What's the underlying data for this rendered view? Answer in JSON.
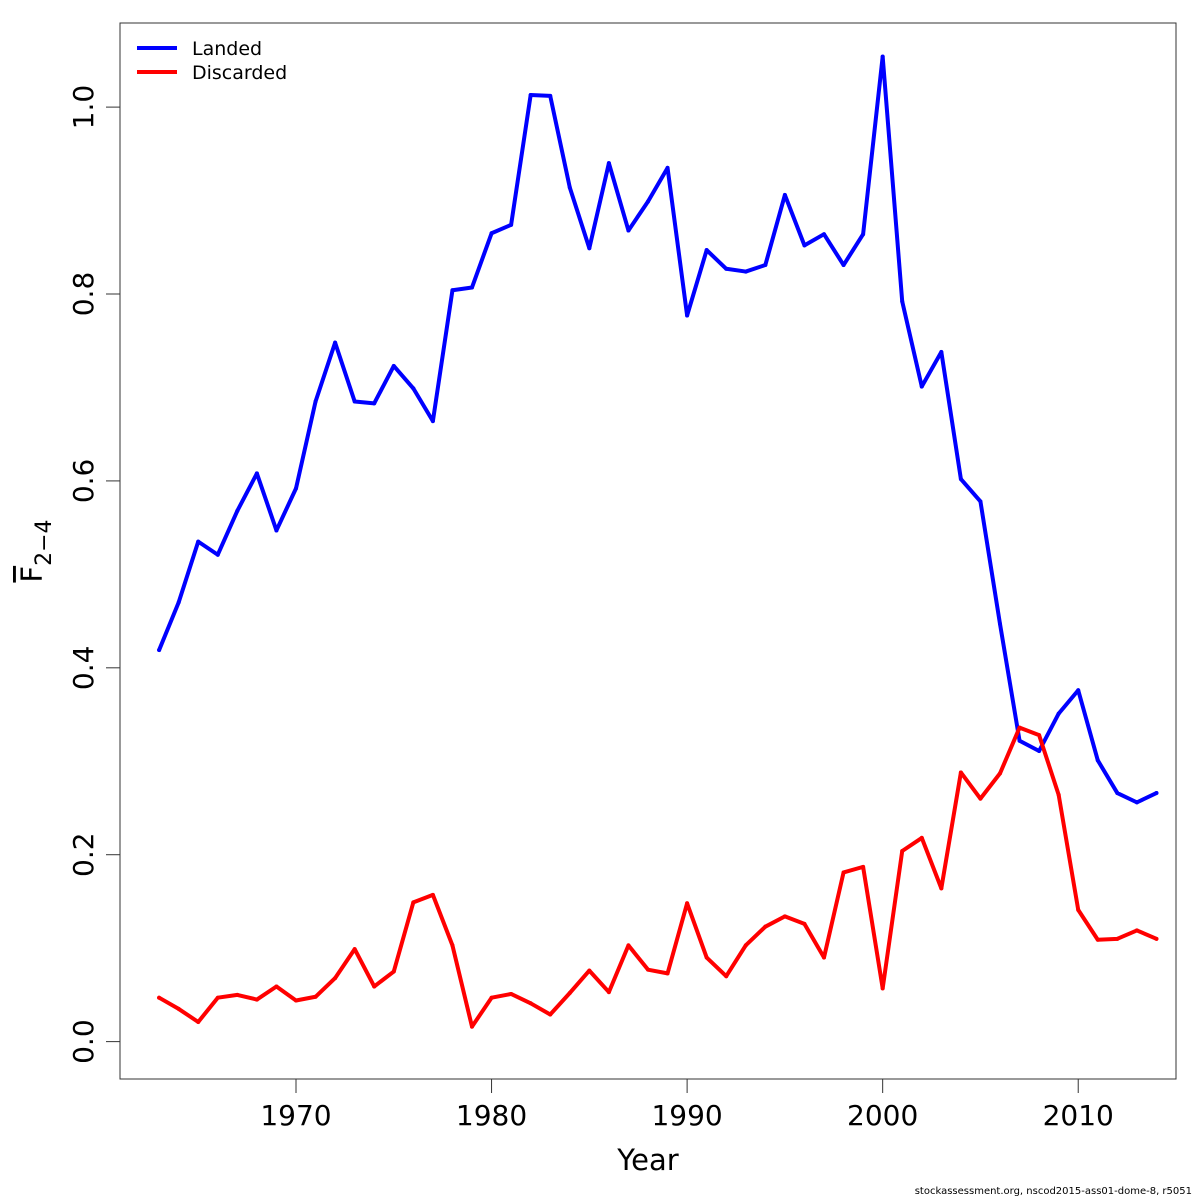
{
  "chart_data": {
    "type": "line",
    "xlabel": "Year",
    "ylabel": {
      "main": "F",
      "subscript": "2−4"
    },
    "xlim": [
      1961,
      2015
    ],
    "ylim": [
      -0.04,
      1.09
    ],
    "xticks": [
      1970,
      1980,
      1990,
      2000,
      2010
    ],
    "yticks": [
      0.0,
      0.2,
      0.4,
      0.6,
      0.8,
      1.0
    ],
    "ytick_labels": [
      "0.0",
      "0.2",
      "0.4",
      "0.6",
      "0.8",
      "1.0"
    ],
    "grid": false,
    "legend_position": "top-left",
    "x": [
      1963,
      1964,
      1965,
      1966,
      1967,
      1968,
      1969,
      1970,
      1971,
      1972,
      1973,
      1974,
      1975,
      1976,
      1977,
      1978,
      1979,
      1980,
      1981,
      1982,
      1983,
      1984,
      1985,
      1986,
      1987,
      1988,
      1989,
      1990,
      1991,
      1992,
      1993,
      1994,
      1995,
      1996,
      1997,
      1998,
      1999,
      2000,
      2001,
      2002,
      2003,
      2004,
      2005,
      2006,
      2007,
      2008,
      2009,
      2010,
      2011,
      2012,
      2013,
      2014
    ],
    "series": [
      {
        "name": "Landed",
        "color": "#0000ff",
        "values": [
          0.419,
          0.47,
          0.535,
          0.521,
          0.568,
          0.608,
          0.547,
          0.592,
          0.685,
          0.748,
          0.685,
          0.683,
          0.723,
          0.699,
          0.664,
          0.804,
          0.807,
          0.865,
          0.874,
          1.013,
          1.012,
          0.914,
          0.849,
          0.94,
          0.868,
          0.899,
          0.935,
          0.777,
          0.847,
          0.827,
          0.824,
          0.831,
          0.906,
          0.852,
          0.864,
          0.831,
          0.864,
          1.054,
          0.792,
          0.701,
          0.738,
          0.602,
          0.578,
          0.447,
          0.322,
          0.311,
          0.351,
          0.376,
          0.301,
          0.266,
          0.256,
          0.266
        ]
      },
      {
        "name": "Discarded",
        "color": "#ff0000",
        "values": [
          0.047,
          0.035,
          0.021,
          0.047,
          0.05,
          0.045,
          0.059,
          0.044,
          0.048,
          0.068,
          0.099,
          0.059,
          0.075,
          0.149,
          0.157,
          0.103,
          0.016,
          0.047,
          0.051,
          0.041,
          0.029,
          0.052,
          0.076,
          0.053,
          0.103,
          0.077,
          0.073,
          0.148,
          0.09,
          0.07,
          0.103,
          0.123,
          0.134,
          0.126,
          0.09,
          0.181,
          0.187,
          0.057,
          0.204,
          0.218,
          0.164,
          0.288,
          0.26,
          0.287,
          0.336,
          0.328,
          0.264,
          0.141,
          0.109,
          0.11,
          0.119,
          0.11
        ]
      }
    ]
  },
  "footer": "stockassessment.org, nscod2015-ass01-dome-8, r5051"
}
